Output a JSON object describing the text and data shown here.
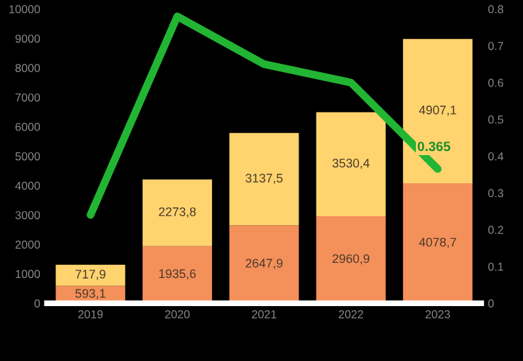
{
  "chart_data": {
    "type": "bar",
    "stacked": true,
    "categories": [
      "2019",
      "2020",
      "2021",
      "2022",
      "2023"
    ],
    "series": [
      {
        "color": "#f4905a",
        "values": [
          593.1,
          1935.6,
          2647.9,
          2960.9,
          4078.7
        ],
        "value_labels": [
          "593,1",
          "1935,6",
          "2647,9",
          "2960,9",
          "4078,7"
        ]
      },
      {
        "color": "#ffd36e",
        "values": [
          717.9,
          2273.8,
          3137.5,
          3530.4,
          4907.1
        ],
        "value_labels": [
          "717,9",
          "2273,8",
          "3137,5",
          "3530,4",
          "4907,1"
        ]
      },
      {
        "type": "line",
        "axis": "y2",
        "color": "#22b534",
        "values": [
          0.24,
          0.78,
          0.65,
          0.6,
          0.365
        ],
        "value_labels": [
          null,
          null,
          null,
          null,
          "0.365"
        ]
      }
    ],
    "ylim": [
      0,
      10000
    ],
    "yticks": [
      0,
      1000,
      2000,
      3000,
      4000,
      5000,
      6000,
      7000,
      8000,
      9000,
      10000
    ],
    "y2lim": [
      0,
      0.8
    ],
    "y2ticks": [
      0,
      0.1,
      0.2,
      0.3,
      0.4,
      0.5,
      0.6,
      0.7,
      0.8
    ],
    "grid": false,
    "marker": "none",
    "line_style": "solid"
  }
}
